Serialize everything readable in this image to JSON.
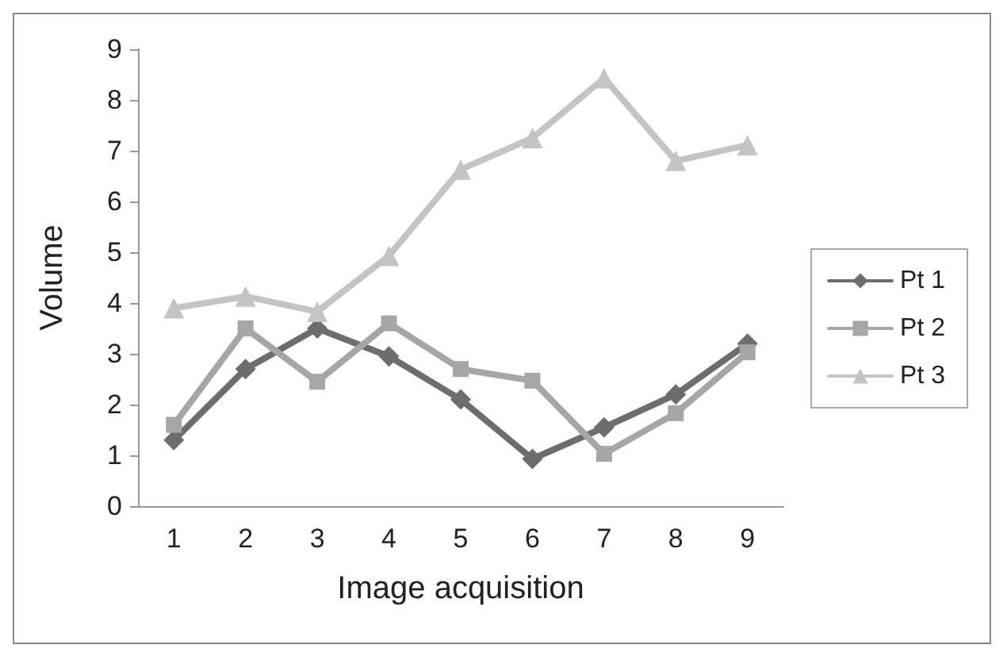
{
  "chart_data": {
    "type": "line",
    "xlabel": "Image acquisition",
    "ylabel": "Volume",
    "categories": [
      "1",
      "2",
      "3",
      "4",
      "5",
      "6",
      "7",
      "8",
      "9"
    ],
    "series": [
      {
        "name": "Pt 1",
        "color": "#6d6d6d",
        "marker": "diamond",
        "values": [
          1.3,
          2.7,
          3.5,
          2.95,
          2.1,
          0.93,
          1.55,
          2.2,
          3.2
        ]
      },
      {
        "name": "Pt 2",
        "color": "#a6a6a6",
        "marker": "square",
        "values": [
          1.6,
          3.5,
          2.45,
          3.6,
          2.7,
          2.47,
          1.03,
          1.83,
          3.03
        ]
      },
      {
        "name": "Pt 3",
        "color": "#c4c4c4",
        "marker": "triangle",
        "values": [
          3.9,
          4.13,
          3.83,
          4.93,
          6.63,
          7.25,
          8.43,
          6.8,
          7.11
        ]
      }
    ],
    "ylim": [
      0,
      9
    ],
    "yticks": [
      0,
      1,
      2,
      3,
      4,
      5,
      6,
      7,
      8,
      9
    ],
    "grid": false,
    "legend": "right",
    "line_style": "solid"
  }
}
